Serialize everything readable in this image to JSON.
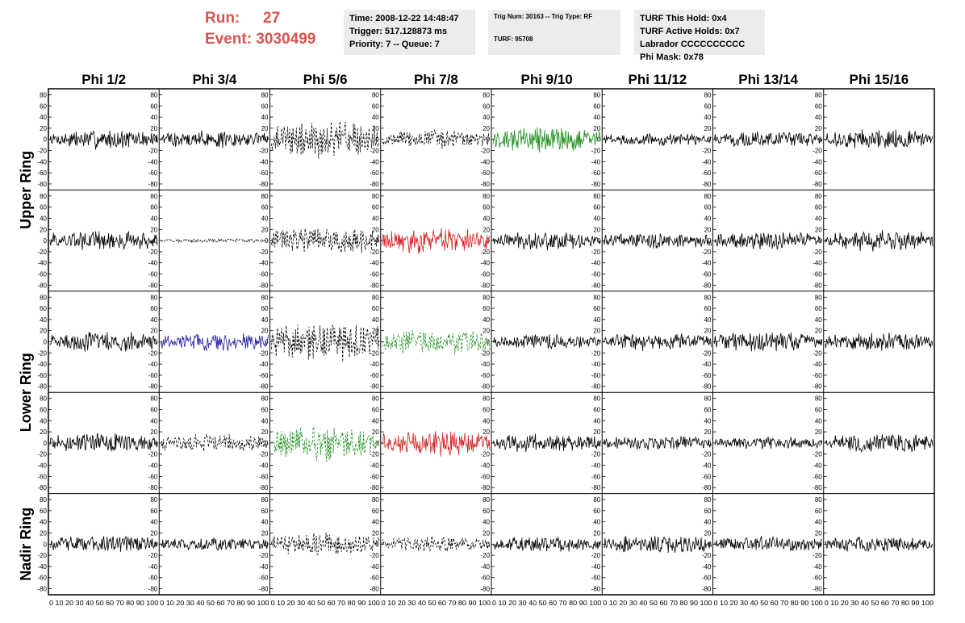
{
  "header": {
    "run_label": "Run:",
    "run_value": "27",
    "event_label": "Event:",
    "event_value": "3030499"
  },
  "info_time": {
    "time": "Time: 2008-12-22 14:48:47",
    "trigger": "Trigger: 517.128873 ms",
    "priority": "Priority: 7 -- Queue: 7"
  },
  "info_trig": {
    "trig": "Trig Num: 30163 -- Trig Type: RF",
    "turf": "TURF: 95708"
  },
  "info_turf": {
    "hold": "TURF This Hold: 0x4",
    "active": "TURF Active Holds: 0x7",
    "labrador": "Labrador CCCCCCCCCC",
    "phimask": "Phi Mask: 0x78"
  },
  "colors": {
    "run_text": "#d9534f",
    "info_bg": "#ececec",
    "trace_black": "#000000",
    "trace_green": "#1f8f1f",
    "trace_red": "#d42020",
    "trace_blue": "#2020a0"
  },
  "phi_labels": [
    "Phi 1/2",
    "Phi 3/4",
    "Phi 5/6",
    "Phi 7/8",
    "Phi 9/10",
    "Phi 11/12",
    "Phi 13/14",
    "Phi 15/16"
  ],
  "ring_labels": [
    "Upper Ring",
    "Lower Ring",
    "Nadir Ring"
  ],
  "y_ticks": [
    "80",
    "60",
    "40",
    "20",
    "0",
    "-20",
    "-40",
    "-60",
    "-80"
  ],
  "x_tick_string": "0 10 20 30 40 50 60 70 80 90 100",
  "chart_data": {
    "type": "line",
    "title": "",
    "x_range": [
      0,
      100
    ],
    "y_range": [
      -85,
      85
    ],
    "x_ticks": [
      0,
      10,
      20,
      30,
      40,
      50,
      60,
      70,
      80,
      90,
      100
    ],
    "y_ticks": [
      -80,
      -60,
      -40,
      -20,
      0,
      20,
      40,
      60,
      80
    ],
    "grid": false,
    "columns": [
      "Phi 1/2",
      "Phi 3/4",
      "Phi 5/6",
      "Phi 7/8",
      "Phi 9/10",
      "Phi 11/12",
      "Phi 13/14",
      "Phi 15/16"
    ],
    "rows": 5,
    "row_groups": [
      {
        "label": "Upper Ring",
        "rows": [
          0,
          1
        ]
      },
      {
        "label": "Lower Ring",
        "rows": [
          2,
          3
        ]
      },
      {
        "label": "Nadir Ring",
        "rows": [
          4
        ]
      }
    ],
    "panels": [
      [
        {
          "color": "black",
          "style": "solid",
          "amp": 15
        },
        {
          "color": "black",
          "style": "solid",
          "amp": 14
        },
        {
          "color": "black",
          "style": "dashed",
          "amp": 28
        },
        {
          "color": "black",
          "style": "dashed",
          "amp": 15
        },
        {
          "color": "green",
          "style": "solid",
          "amp": 20
        },
        {
          "color": "black",
          "style": "solid",
          "amp": 10
        },
        {
          "color": "black",
          "style": "solid",
          "amp": 12
        },
        {
          "color": "black",
          "style": "solid",
          "amp": 15
        }
      ],
      [
        {
          "color": "black",
          "style": "solid",
          "amp": 16
        },
        {
          "color": "black",
          "style": "dashed",
          "amp": 3
        },
        {
          "color": "black",
          "style": "dashed",
          "amp": 22
        },
        {
          "color": "red",
          "style": "solid",
          "amp": 20
        },
        {
          "color": "black",
          "style": "solid",
          "amp": 14
        },
        {
          "color": "black",
          "style": "solid",
          "amp": 12
        },
        {
          "color": "black",
          "style": "solid",
          "amp": 14
        },
        {
          "color": "black",
          "style": "solid",
          "amp": 16
        }
      ],
      [
        {
          "color": "black",
          "style": "solid",
          "amp": 16
        },
        {
          "color": "blue",
          "style": "solid",
          "amp": 14
        },
        {
          "color": "black",
          "style": "dashed",
          "amp": 32
        },
        {
          "color": "green",
          "style": "dashed",
          "amp": 20
        },
        {
          "color": "black",
          "style": "solid",
          "amp": 12
        },
        {
          "color": "black",
          "style": "solid",
          "amp": 14
        },
        {
          "color": "black",
          "style": "solid",
          "amp": 16
        },
        {
          "color": "black",
          "style": "solid",
          "amp": 14
        }
      ],
      [
        {
          "color": "black",
          "style": "solid",
          "amp": 15
        },
        {
          "color": "black",
          "style": "dashed",
          "amp": 14
        },
        {
          "color": "green",
          "style": "dashed",
          "amp": 28
        },
        {
          "color": "red",
          "style": "solid",
          "amp": 20
        },
        {
          "color": "black",
          "style": "solid",
          "amp": 14
        },
        {
          "color": "black",
          "style": "solid",
          "amp": 11
        },
        {
          "color": "black",
          "style": "solid",
          "amp": 10
        },
        {
          "color": "black",
          "style": "solid",
          "amp": 15
        }
      ],
      [
        {
          "color": "black",
          "style": "solid",
          "amp": 14
        },
        {
          "color": "black",
          "style": "solid",
          "amp": 10
        },
        {
          "color": "black",
          "style": "dashed",
          "amp": 18
        },
        {
          "color": "black",
          "style": "dashed",
          "amp": 12
        },
        {
          "color": "black",
          "style": "solid",
          "amp": 12
        },
        {
          "color": "black",
          "style": "solid",
          "amp": 14
        },
        {
          "color": "black",
          "style": "solid",
          "amp": 12
        },
        {
          "color": "black",
          "style": "solid",
          "amp": 12
        }
      ]
    ]
  }
}
